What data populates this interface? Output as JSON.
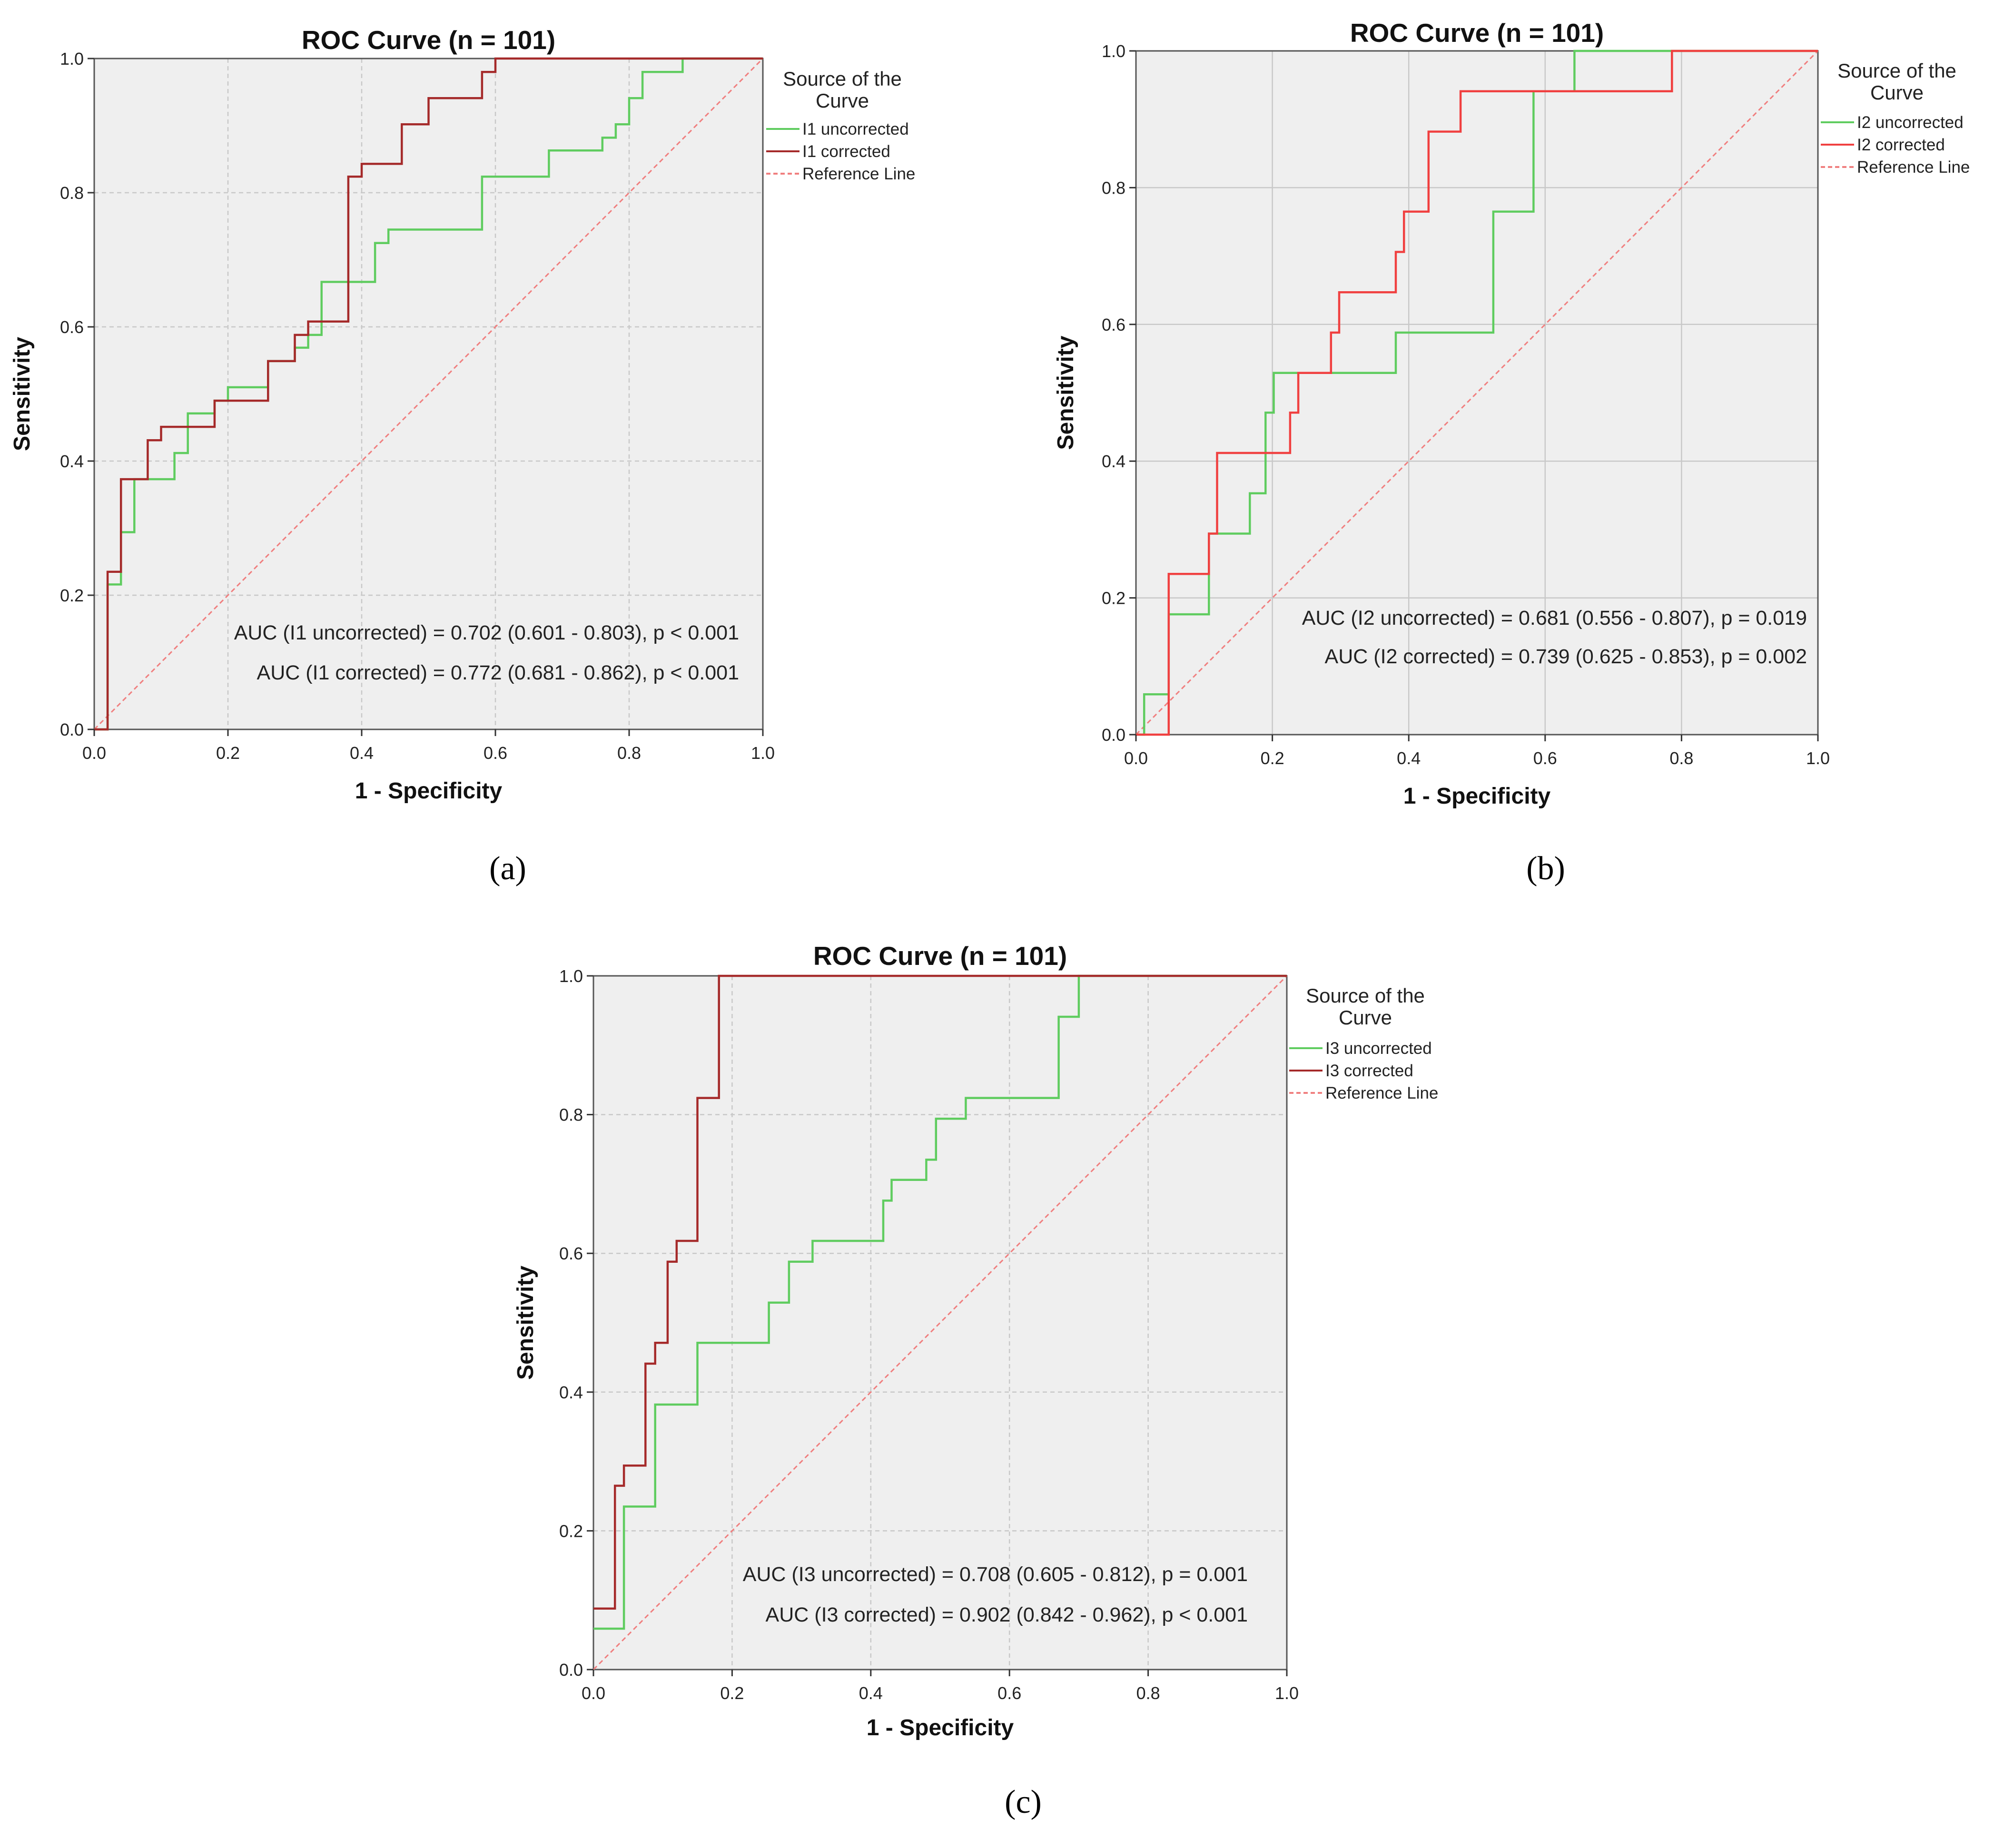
{
  "chart_data": [
    {
      "id": "a",
      "type": "line",
      "panel_label": "(a)",
      "title": "ROC Curve (n = 101)",
      "xlabel": "1 - Specificity",
      "ylabel": "Sensitivity",
      "xlim": [
        0,
        1
      ],
      "ylim": [
        0,
        1
      ],
      "ticks": [
        "0.0",
        "0.2",
        "0.4",
        "0.6",
        "0.8",
        "1.0"
      ],
      "tick_values": [
        0,
        0.2,
        0.4,
        0.6,
        0.8,
        1.0
      ],
      "grid_dashed": true,
      "legend_title": [
        "Source of the",
        "Curve"
      ],
      "legend_position": "right",
      "series": [
        {
          "name": "I1 uncorrected",
          "color": "#5fcc5f",
          "x": [
            0,
            0.02,
            0.02,
            0.04,
            0.04,
            0.06,
            0.06,
            0.12,
            0.12,
            0.14,
            0.14,
            0.18,
            0.18,
            0.2,
            0.2,
            0.26,
            0.26,
            0.3,
            0.3,
            0.32,
            0.32,
            0.34,
            0.34,
            0.42,
            0.42,
            0.44,
            0.44,
            0.58,
            0.58,
            0.68,
            0.68,
            0.76,
            0.76,
            0.78,
            0.78,
            0.8,
            0.8,
            0.82,
            0.82,
            0.88,
            0.88,
            1.0
          ],
          "y": [
            0,
            0,
            0.216,
            0.216,
            0.294,
            0.294,
            0.373,
            0.373,
            0.412,
            0.412,
            0.471,
            0.471,
            0.49,
            0.49,
            0.51,
            0.51,
            0.549,
            0.549,
            0.569,
            0.569,
            0.588,
            0.588,
            0.667,
            0.667,
            0.725,
            0.725,
            0.745,
            0.745,
            0.824,
            0.824,
            0.863,
            0.863,
            0.882,
            0.882,
            0.902,
            0.902,
            0.941,
            0.941,
            0.98,
            0.98,
            1.0,
            1.0
          ]
        },
        {
          "name": "I1 corrected",
          "color": "#a52a2a",
          "x": [
            0,
            0.02,
            0.02,
            0.04,
            0.04,
            0.08,
            0.08,
            0.1,
            0.1,
            0.18,
            0.18,
            0.26,
            0.26,
            0.3,
            0.3,
            0.32,
            0.32,
            0.38,
            0.38,
            0.4,
            0.4,
            0.46,
            0.46,
            0.5,
            0.5,
            0.58,
            0.58,
            0.6,
            0.6,
            0.62,
            0.62,
            1.0
          ],
          "y": [
            0,
            0,
            0.235,
            0.235,
            0.373,
            0.373,
            0.431,
            0.431,
            0.451,
            0.451,
            0.49,
            0.49,
            0.549,
            0.549,
            0.588,
            0.588,
            0.608,
            0.608,
            0.824,
            0.824,
            0.843,
            0.843,
            0.902,
            0.902,
            0.941,
            0.941,
            0.98,
            0.98,
            1.0,
            1.0,
            1.0,
            1.0
          ]
        },
        {
          "name": "Reference Line",
          "color": "#f07f7f",
          "dashed": true,
          "x": [
            0,
            1
          ],
          "y": [
            0,
            1
          ]
        }
      ],
      "annotations": [
        "AUC (I1 uncorrected) = 0.702 (0.601 - 0.803), p < 0.001",
        "AUC (I1 corrected) = 0.772 (0.681 - 0.862), p < 0.001"
      ]
    },
    {
      "id": "b",
      "type": "line",
      "panel_label": "(b)",
      "title": "ROC Curve (n = 101)",
      "xlabel": "1 - Specificity",
      "ylabel": "Sensitivity",
      "xlim": [
        0,
        1
      ],
      "ylim": [
        0,
        1
      ],
      "ticks": [
        "0.0",
        "0.2",
        "0.4",
        "0.6",
        "0.8",
        "1.0"
      ],
      "tick_values": [
        0,
        0.2,
        0.4,
        0.6,
        0.8,
        1.0
      ],
      "grid_dashed": false,
      "legend_title": [
        "Source of the",
        "Curve"
      ],
      "legend_position": "right",
      "series": [
        {
          "name": "I2 uncorrected",
          "color": "#5fcc5f",
          "x": [
            0,
            0.012,
            0.012,
            0.048,
            0.048,
            0.107,
            0.107,
            0.167,
            0.167,
            0.19,
            0.19,
            0.202,
            0.202,
            0.381,
            0.381,
            0.524,
            0.524,
            0.583,
            0.583,
            0.643,
            0.643,
            1.0
          ],
          "y": [
            0,
            0,
            0.059,
            0.059,
            0.176,
            0.176,
            0.294,
            0.294,
            0.353,
            0.353,
            0.471,
            0.471,
            0.529,
            0.529,
            0.588,
            0.588,
            0.765,
            0.765,
            0.941,
            0.941,
            1.0,
            1.0
          ]
        },
        {
          "name": "I2 corrected",
          "color": "#f04040",
          "x": [
            0,
            0.048,
            0.048,
            0.107,
            0.107,
            0.119,
            0.119,
            0.226,
            0.226,
            0.238,
            0.238,
            0.286,
            0.286,
            0.298,
            0.298,
            0.381,
            0.381,
            0.393,
            0.393,
            0.429,
            0.429,
            0.476,
            0.476,
            0.786,
            0.786,
            1.0
          ],
          "y": [
            0,
            0,
            0.235,
            0.235,
            0.294,
            0.294,
            0.412,
            0.412,
            0.471,
            0.471,
            0.529,
            0.529,
            0.588,
            0.588,
            0.647,
            0.647,
            0.706,
            0.706,
            0.765,
            0.765,
            0.882,
            0.882,
            0.941,
            0.941,
            1.0,
            1.0
          ]
        },
        {
          "name": "Reference Line",
          "color": "#f07f7f",
          "dashed": true,
          "x": [
            0,
            1
          ],
          "y": [
            0,
            1
          ]
        }
      ],
      "annotations": [
        "AUC (I2 uncorrected) = 0.681 (0.556 - 0.807), p = 0.019",
        "AUC (I2 corrected) = 0.739 (0.625 - 0.853), p = 0.002"
      ]
    },
    {
      "id": "c",
      "type": "line",
      "panel_label": "(c)",
      "title": "ROC Curve (n = 101)",
      "xlabel": "1 - Specificity",
      "ylabel": "Sensitivity",
      "xlim": [
        0,
        1
      ],
      "ylim": [
        0,
        1
      ],
      "ticks": [
        "0.0",
        "0.2",
        "0.4",
        "0.6",
        "0.8",
        "1.0"
      ],
      "tick_values": [
        0,
        0.2,
        0.4,
        0.6,
        0.8,
        1.0
      ],
      "grid_dashed": true,
      "legend_title": [
        "Source of the",
        "Curve"
      ],
      "legend_position": "right",
      "series": [
        {
          "name": "I3 uncorrected",
          "color": "#5fcc5f",
          "x": [
            0,
            0.044,
            0.044,
            0.089,
            0.089,
            0.15,
            0.15,
            0.253,
            0.253,
            0.282,
            0.282,
            0.316,
            0.316,
            0.418,
            0.418,
            0.43,
            0.43,
            0.48,
            0.48,
            0.494,
            0.494,
            0.537,
            0.537,
            0.671,
            0.671,
            0.7,
            0.7,
            1.0
          ],
          "y": [
            0.059,
            0.059,
            0.235,
            0.235,
            0.382,
            0.382,
            0.471,
            0.471,
            0.529,
            0.529,
            0.588,
            0.588,
            0.618,
            0.618,
            0.676,
            0.676,
            0.706,
            0.706,
            0.735,
            0.735,
            0.794,
            0.794,
            0.824,
            0.824,
            0.941,
            0.941,
            1.0,
            1.0
          ]
        },
        {
          "name": "I3 corrected",
          "color": "#a52a2a",
          "x": [
            0,
            0.031,
            0.031,
            0.044,
            0.044,
            0.075,
            0.075,
            0.089,
            0.089,
            0.107,
            0.107,
            0.12,
            0.12,
            0.15,
            0.15,
            0.181,
            0.181,
            1.0
          ],
          "y": [
            0.088,
            0.088,
            0.265,
            0.265,
            0.294,
            0.294,
            0.441,
            0.441,
            0.471,
            0.471,
            0.588,
            0.588,
            0.618,
            0.618,
            0.824,
            0.824,
            1.0,
            1.0
          ]
        },
        {
          "name": "Reference Line",
          "color": "#f07f7f",
          "dashed": true,
          "x": [
            0,
            1
          ],
          "y": [
            0,
            1
          ]
        }
      ],
      "annotations": [
        "AUC (I3 uncorrected) = 0.708 (0.605 - 0.812), p = 0.001",
        "AUC (I3 corrected) = 0.902 (0.842 - 0.962), p < 0.001"
      ]
    }
  ]
}
